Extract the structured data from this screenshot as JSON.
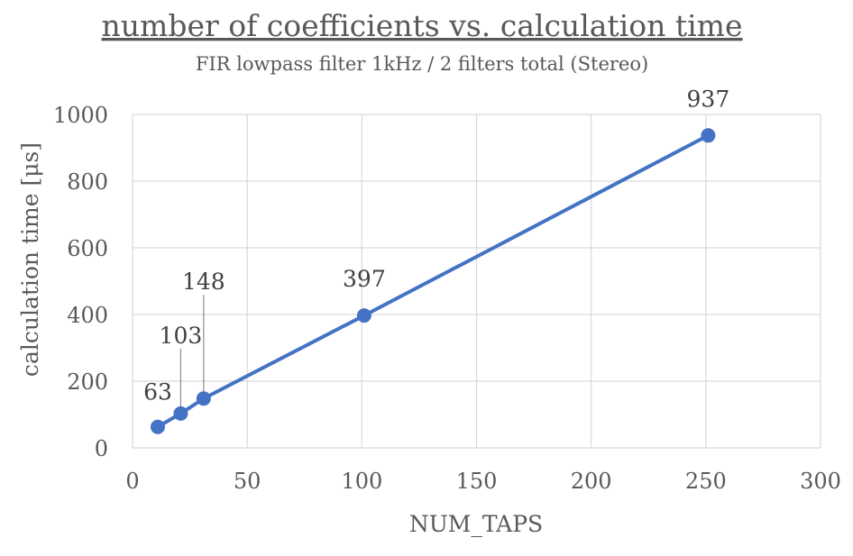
{
  "chart_data": {
    "type": "scatter",
    "title": "number of coefficients vs. calculation time",
    "subtitle": "FIR lowpass filter 1kHz / 2 filters total (Stereo)",
    "xlabel": "NUM_TAPS",
    "ylabel": "calculation time [μs]",
    "xlim": [
      0,
      300
    ],
    "ylim": [
      0,
      1000
    ],
    "xticks": [
      "0",
      "50",
      "100",
      "150",
      "200",
      "250",
      "300"
    ],
    "yticks": [
      "0",
      "200",
      "400",
      "600",
      "800",
      "1000"
    ],
    "grid": true,
    "series": [
      {
        "x": [
          11,
          21,
          31,
          101,
          251
        ],
        "values": [
          63,
          103,
          148,
          397,
          937
        ],
        "labels": [
          "63",
          "103",
          "148",
          "397",
          "937"
        ],
        "color": "#4472C4"
      }
    ]
  }
}
